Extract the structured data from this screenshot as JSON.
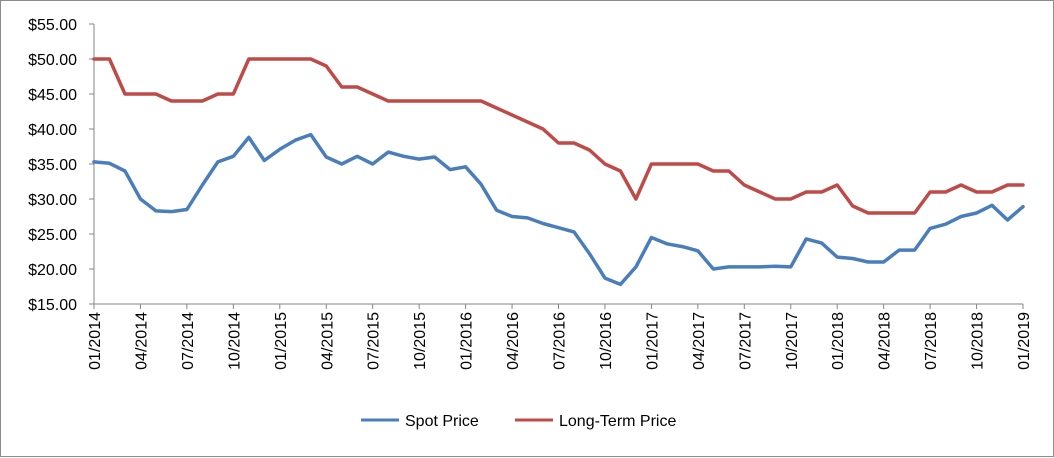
{
  "chart_data": {
    "type": "line",
    "title": "",
    "xlabel": "",
    "ylabel": "",
    "ylim": [
      15,
      55
    ],
    "y_tick_labels": [
      "$15.00",
      "$20.00",
      "$25.00",
      "$30.00",
      "$35.00",
      "$40.00",
      "$45.00",
      "$50.00",
      "$55.00"
    ],
    "x_tick_labels": [
      "01/2014",
      "04/2014",
      "07/2014",
      "10/2014",
      "01/2015",
      "04/2015",
      "07/2015",
      "10/2015",
      "01/2016",
      "04/2016",
      "07/2016",
      "10/2016",
      "01/2017",
      "04/2017",
      "07/2017",
      "10/2017",
      "01/2018",
      "04/2018",
      "07/2018",
      "10/2018",
      "01/2019"
    ],
    "x_months": [
      "01/2014",
      "02/2014",
      "03/2014",
      "04/2014",
      "05/2014",
      "06/2014",
      "07/2014",
      "08/2014",
      "09/2014",
      "10/2014",
      "11/2014",
      "12/2014",
      "01/2015",
      "02/2015",
      "03/2015",
      "04/2015",
      "05/2015",
      "06/2015",
      "07/2015",
      "08/2015",
      "09/2015",
      "10/2015",
      "11/2015",
      "12/2015",
      "01/2016",
      "02/2016",
      "03/2016",
      "04/2016",
      "05/2016",
      "06/2016",
      "07/2016",
      "08/2016",
      "09/2016",
      "10/2016",
      "11/2016",
      "12/2016",
      "01/2017",
      "02/2017",
      "03/2017",
      "04/2017",
      "05/2017",
      "06/2017",
      "07/2017",
      "08/2017",
      "09/2017",
      "10/2017",
      "11/2017",
      "12/2017",
      "01/2018",
      "02/2018",
      "03/2018",
      "04/2018",
      "05/2018",
      "06/2018",
      "07/2018",
      "08/2018",
      "09/2018",
      "10/2018",
      "11/2018",
      "12/2018",
      "01/2019"
    ],
    "grid": false,
    "legend_position": "bottom",
    "series": [
      {
        "name": "Spot Price",
        "color": "#4a7ebb",
        "values": [
          35.3,
          35.1,
          34.0,
          30.0,
          28.3,
          28.2,
          28.5,
          32.0,
          35.3,
          36.1,
          38.8,
          35.5,
          37.1,
          38.4,
          39.2,
          36.0,
          35.0,
          36.1,
          35.0,
          36.7,
          36.1,
          35.7,
          36.0,
          34.2,
          34.6,
          32.1,
          28.4,
          27.5,
          27.3,
          26.5,
          25.9,
          25.3,
          22.2,
          18.7,
          17.8,
          20.3,
          24.5,
          23.6,
          23.2,
          22.6,
          20.0,
          20.3,
          20.3,
          20.3,
          20.4,
          20.3,
          24.3,
          23.7,
          21.7,
          21.5,
          21.0,
          21.0,
          22.7,
          22.7,
          25.8,
          26.4,
          27.5,
          28.0,
          29.1,
          27.0,
          28.9
        ]
      },
      {
        "name": "Long-Term Price",
        "color": "#be4b48",
        "values": [
          50,
          50,
          45,
          45,
          45,
          44,
          44,
          44,
          45,
          45,
          50,
          50,
          50,
          50,
          50,
          49,
          46,
          46,
          45,
          44,
          44,
          44,
          44,
          44,
          44,
          44,
          43,
          42,
          41,
          40,
          38,
          38,
          37,
          35,
          34,
          30,
          35,
          35,
          35,
          35,
          34,
          34,
          32,
          31,
          30,
          30,
          31,
          31,
          32,
          29,
          28,
          28,
          28,
          28,
          31,
          31,
          32,
          31,
          31,
          32,
          32
        ]
      }
    ]
  }
}
